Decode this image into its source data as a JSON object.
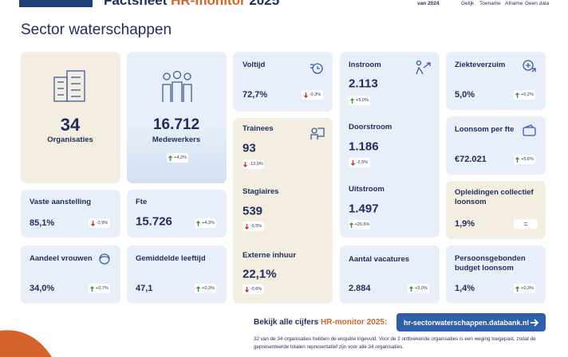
{
  "header": {
    "title_parts": [
      "Factsheet",
      "HR-monitor",
      "2025"
    ],
    "legend": {
      "caption": "van 2024",
      "items": [
        "Gelijk",
        "Toename",
        "Afname",
        "Geen data"
      ]
    }
  },
  "section_title": "Sector waterschappen",
  "cards": [
    {
      "label": "Organisaties",
      "value": "34"
    },
    {
      "label": "Medewerkers",
      "value": "16.712",
      "change": "+4,2%",
      "direction": "up"
    },
    {
      "label": "Vaste aanstelling",
      "value": "85,1%",
      "change": "-2,9%",
      "direction": "down"
    },
    {
      "label": "Fte",
      "value": "15.726",
      "change": "+4,3%",
      "direction": "up"
    },
    {
      "label": "Aandeel vrouwen",
      "value": "34,0%",
      "change": "+0,7%",
      "direction": "up"
    },
    {
      "label": "Gemiddelde leeftijd",
      "value": "47,1",
      "change": "+0,3%",
      "direction": "up"
    },
    {
      "label": "Voltijd",
      "value": "72,7%",
      "change": "-0,3%",
      "direction": "down"
    },
    {
      "label": "Trainees",
      "value": "93",
      "change": "-13,9%",
      "direction": "down"
    },
    {
      "label": "Stagiaires",
      "value": "539",
      "change": "-9,5%",
      "direction": "down"
    },
    {
      "label": "Externe inhuur",
      "value": "22,1%",
      "change": "-0,6%",
      "direction": "down"
    },
    {
      "label": "Instroom",
      "value": "2.113",
      "change": "+5,0%",
      "direction": "up"
    },
    {
      "label": "Doorstroom",
      "value": "1.186",
      "change": "-2,5%",
      "direction": "down"
    },
    {
      "label": "Uitstroom",
      "value": "1.497",
      "change": "+20,6%",
      "direction": "up"
    },
    {
      "label": "Aantal vacatures",
      "value": "2.884",
      "change": "+5,0%",
      "direction": "up"
    },
    {
      "label": "Ziekteverzuim",
      "value": "5,0%",
      "change": "+0,2%",
      "direction": "up"
    },
    {
      "label": "Loonsom per fte",
      "value": "€72.021",
      "change": "+5,6%",
      "direction": "up"
    },
    {
      "label": "Opleidingen collectief loonsom",
      "value": "1,9%",
      "change": "=",
      "direction": "equal"
    },
    {
      "label": "Persoonsgebonden budget loonsom",
      "value": "1,4%",
      "change": "+0,3%",
      "direction": "up"
    }
  ],
  "footer": {
    "cta_parts": [
      "Bekijk alle cijfers",
      "HR-monitor 2025:"
    ],
    "button": "hr-sectorwaterschappen.databank.nl",
    "note": "32 van de 34 organisaties hebben de enquête ingevuld. Voor de 2 ontbrekende organisaties is een weging toegepast, zodat de gepresenteerde totalen representatief zijn voor alle 34 organisaties."
  }
}
